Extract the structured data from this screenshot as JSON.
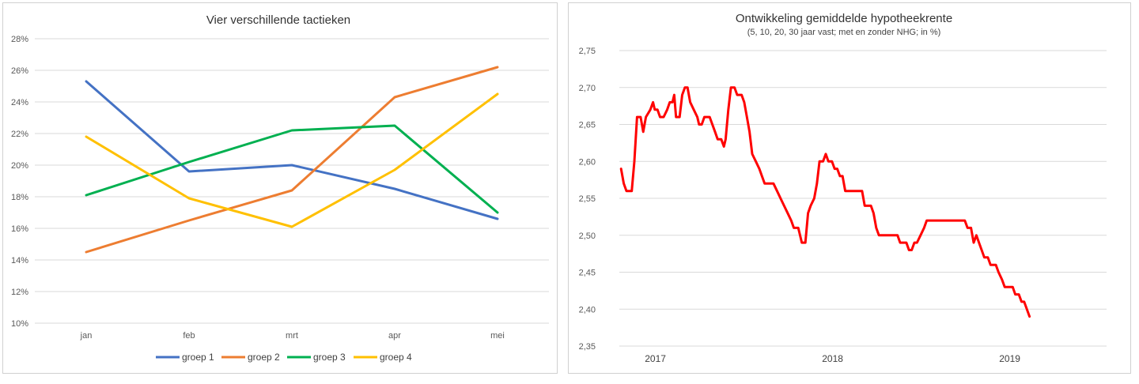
{
  "chart_data": [
    {
      "type": "line",
      "title": "Vier verschillende tactieken",
      "categories": [
        "jan",
        "feb",
        "mrt",
        "apr",
        "mei"
      ],
      "y_ticks": [
        "10%",
        "12%",
        "14%",
        "16%",
        "18%",
        "20%",
        "22%",
        "24%",
        "26%",
        "28%"
      ],
      "ylim": [
        10,
        28
      ],
      "grid": true,
      "legend_position": "bottom",
      "series": [
        {
          "name": "groep 1",
          "color": "#4472c4",
          "values": [
            25.3,
            19.6,
            20.0,
            18.5,
            16.6
          ]
        },
        {
          "name": "groep 2",
          "color": "#ed7d31",
          "values": [
            14.5,
            16.5,
            18.4,
            24.3,
            26.2
          ]
        },
        {
          "name": "groep 3",
          "color": "#00b050",
          "values": [
            18.1,
            20.2,
            22.2,
            22.5,
            17.0
          ]
        },
        {
          "name": "groep 4",
          "color": "#ffc000",
          "values": [
            21.8,
            17.9,
            16.1,
            19.7,
            24.5
          ]
        }
      ]
    },
    {
      "type": "line",
      "title": "Ontwikkeling gemiddelde hypotheekrente",
      "subtitle": "(5, 10, 20, 30 jaar vast; met en zonder NHG; in %)",
      "y_ticks": [
        "2,35",
        "2,40",
        "2,45",
        "2,50",
        "2,55",
        "2,60",
        "2,65",
        "2,70",
        "2,75"
      ],
      "ylim": [
        2.35,
        2.75
      ],
      "x_labels": [
        {
          "label": "2017",
          "x": 2017.0
        },
        {
          "label": "2018",
          "x": 2018.0
        },
        {
          "label": "2019",
          "x": 2019.0
        }
      ],
      "xlim": [
        2016.85,
        2019.6
      ],
      "grid": true,
      "series": [
        {
          "color": "#ff0000",
          "points": [
            [
              2016.86,
              2.59
            ],
            [
              2016.875,
              2.57
            ],
            [
              2016.89,
              2.56
            ],
            [
              2016.92,
              2.56
            ],
            [
              2016.935,
              2.6
            ],
            [
              2016.95,
              2.66
            ],
            [
              2016.97,
              2.66
            ],
            [
              2016.985,
              2.64
            ],
            [
              2017.0,
              2.66
            ],
            [
              2017.025,
              2.67
            ],
            [
              2017.04,
              2.68
            ],
            [
              2017.05,
              2.67
            ],
            [
              2017.065,
              2.67
            ],
            [
              2017.08,
              2.66
            ],
            [
              2017.1,
              2.66
            ],
            [
              2017.12,
              2.67
            ],
            [
              2017.135,
              2.68
            ],
            [
              2017.15,
              2.68
            ],
            [
              2017.16,
              2.69
            ],
            [
              2017.17,
              2.66
            ],
            [
              2017.19,
              2.66
            ],
            [
              2017.205,
              2.69
            ],
            [
              2017.22,
              2.7
            ],
            [
              2017.235,
              2.7
            ],
            [
              2017.25,
              2.68
            ],
            [
              2017.27,
              2.67
            ],
            [
              2017.29,
              2.66
            ],
            [
              2017.3,
              2.65
            ],
            [
              2017.315,
              2.65
            ],
            [
              2017.33,
              2.66
            ],
            [
              2017.36,
              2.66
            ],
            [
              2017.375,
              2.65
            ],
            [
              2017.39,
              2.64
            ],
            [
              2017.405,
              2.63
            ],
            [
              2017.425,
              2.63
            ],
            [
              2017.44,
              2.62
            ],
            [
              2017.45,
              2.63
            ],
            [
              2017.465,
              2.67
            ],
            [
              2017.48,
              2.7
            ],
            [
              2017.5,
              2.7
            ],
            [
              2017.515,
              2.69
            ],
            [
              2017.54,
              2.69
            ],
            [
              2017.555,
              2.68
            ],
            [
              2017.57,
              2.66
            ],
            [
              2017.585,
              2.64
            ],
            [
              2017.6,
              2.61
            ],
            [
              2017.62,
              2.6
            ],
            [
              2017.64,
              2.59
            ],
            [
              2017.655,
              2.58
            ],
            [
              2017.67,
              2.57
            ],
            [
              2017.72,
              2.57
            ],
            [
              2017.74,
              2.56
            ],
            [
              2017.76,
              2.55
            ],
            [
              2017.78,
              2.54
            ],
            [
              2017.8,
              2.53
            ],
            [
              2017.82,
              2.52
            ],
            [
              2017.835,
              2.51
            ],
            [
              2017.86,
              2.51
            ],
            [
              2017.87,
              2.5
            ],
            [
              2017.88,
              2.49
            ],
            [
              2017.9,
              2.49
            ],
            [
              2017.915,
              2.53
            ],
            [
              2017.93,
              2.54
            ],
            [
              2017.95,
              2.55
            ],
            [
              2017.965,
              2.57
            ],
            [
              2017.98,
              2.6
            ],
            [
              2018.0,
              2.6
            ],
            [
              2018.015,
              2.61
            ],
            [
              2018.03,
              2.6
            ],
            [
              2018.05,
              2.6
            ],
            [
              2018.065,
              2.59
            ],
            [
              2018.08,
              2.59
            ],
            [
              2018.095,
              2.58
            ],
            [
              2018.11,
              2.58
            ],
            [
              2018.125,
              2.56
            ],
            [
              2018.16,
              2.56
            ],
            [
              2018.2,
              2.56
            ],
            [
              2018.22,
              2.56
            ],
            [
              2018.235,
              2.54
            ],
            [
              2018.27,
              2.54
            ],
            [
              2018.285,
              2.53
            ],
            [
              2018.3,
              2.51
            ],
            [
              2018.315,
              2.5
            ],
            [
              2018.35,
              2.5
            ],
            [
              2018.39,
              2.5
            ],
            [
              2018.42,
              2.5
            ],
            [
              2018.435,
              2.49
            ],
            [
              2018.47,
              2.49
            ],
            [
              2018.485,
              2.48
            ],
            [
              2018.5,
              2.48
            ],
            [
              2018.515,
              2.49
            ],
            [
              2018.53,
              2.49
            ],
            [
              2018.55,
              2.5
            ],
            [
              2018.57,
              2.51
            ],
            [
              2018.585,
              2.52
            ],
            [
              2018.65,
              2.52
            ],
            [
              2018.75,
              2.52
            ],
            [
              2018.8,
              2.52
            ],
            [
              2018.815,
              2.51
            ],
            [
              2018.835,
              2.51
            ],
            [
              2018.85,
              2.49
            ],
            [
              2018.865,
              2.5
            ],
            [
              2018.88,
              2.49
            ],
            [
              2018.895,
              2.48
            ],
            [
              2018.91,
              2.47
            ],
            [
              2018.93,
              2.47
            ],
            [
              2018.945,
              2.46
            ],
            [
              2018.975,
              2.46
            ],
            [
              2018.99,
              2.45
            ],
            [
              2019.01,
              2.44
            ],
            [
              2019.025,
              2.43
            ],
            [
              2019.07,
              2.43
            ],
            [
              2019.085,
              2.42
            ],
            [
              2019.105,
              2.42
            ],
            [
              2019.12,
              2.41
            ],
            [
              2019.135,
              2.41
            ],
            [
              2019.15,
              2.4
            ],
            [
              2019.165,
              2.39
            ]
          ]
        }
      ]
    }
  ]
}
